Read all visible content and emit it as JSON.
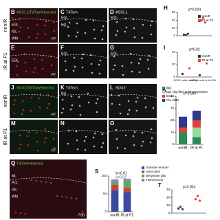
{
  "side_labels": [
    "nonIR",
    "IR at P1",
    "nonIR",
    "IR at P1"
  ],
  "panels": [
    {
      "letter": "B",
      "title": "ASCL1/TdTom/Hoechst",
      "tags": [
        "P7",
        "EGL",
        "IGL",
        "WM"
      ]
    },
    {
      "letter": "C",
      "title": "TdTom",
      "tags": [
        "EGL",
        "Bgl."
      ]
    },
    {
      "letter": "D",
      "title": "ASCL1",
      "tags": [
        "EGL"
      ]
    },
    {
      "letter": "E",
      "tags": [
        "P7",
        "EGL"
      ]
    },
    {
      "letter": "F",
      "tags": [
        "EGL"
      ]
    },
    {
      "letter": "G",
      "tags": [
        "EGL"
      ]
    },
    {
      "letter": "J",
      "title": "SOX2/TdTom/Hoechst",
      "tags": [
        "P7"
      ]
    },
    {
      "letter": "K",
      "title": "TdTom",
      "tags": [
        "Bgl."
      ]
    },
    {
      "letter": "L",
      "title": "SOX2",
      "tags": []
    },
    {
      "letter": "M",
      "tags": [
        "P7"
      ]
    },
    {
      "letter": "N",
      "tags": []
    },
    {
      "letter": "O",
      "tags": []
    },
    {
      "letter": "Q",
      "title": "TdTom/Hoechst",
      "tags": [
        "P30",
        "ML",
        "PCL",
        "IGL",
        "WM"
      ]
    }
  ],
  "charts": [
    {
      "letter": "H",
      "type": "dots",
      "annotations": [
        "p=0.004"
      ],
      "ylim": [
        0,
        60
      ],
      "yticks": [
        0,
        20,
        40,
        60
      ],
      "series": [
        {
          "name": "nonIR",
          "color": "#333333",
          "values": [
            3,
            2,
            5
          ]
        },
        {
          "name": "IR at P1",
          "color": "#e0403a",
          "values": [
            40,
            46,
            34
          ]
        }
      ]
    },
    {
      "letter": "I",
      "type": "dots",
      "annotations": [
        "p=0.02"
      ],
      "ylim": [
        0,
        40
      ],
      "yticks": [
        0,
        20,
        40
      ],
      "categories": [
        "SOX2+ cells in the Bgl.",
        "ASCL1+ cells in the EGL"
      ],
      "series": [
        {
          "name": "nonIR",
          "color": "#333333",
          "values": [
            5,
            3
          ]
        },
        {
          "name": "IR at P1",
          "color": "#e0403a",
          "values": [
            14,
            22
          ]
        }
      ]
    },
    {
      "letter": "P",
      "type": "stacked",
      "annotations": [
        "p=0.005"
      ],
      "ylim": [
        0,
        40
      ],
      "yticks": [
        0,
        10,
        20,
        30,
        40
      ],
      "categories": [
        "nonIR",
        "IR at P1"
      ],
      "series": [
        {
          "name": "Bgl.",
          "color": "#2e8b57",
          "values": [
            10,
            6
          ]
        },
        {
          "name": "Bgl. (Bg-like) in IR progenitors",
          "color": "#9bd89b",
          "values": [
            0,
            8
          ]
        },
        {
          "name": "EGL",
          "color": "#e04040",
          "values": [
            4,
            6
          ]
        },
        {
          "name": "IGL+WM",
          "color": "#2f3a8f",
          "values": [
            9,
            8
          ]
        }
      ]
    },
    {
      "letter": "S",
      "type": "stacked",
      "annotations": [
        "*p<0.01",
        "p=0.02"
      ],
      "ylim": [
        0,
        100
      ],
      "yticks": [
        0,
        50,
        100
      ],
      "categories": [
        "nonIR",
        "IR at P1"
      ],
      "series": [
        {
          "name": "Granule neurons",
          "color": "#3a4aa0",
          "values": [
            60,
            55
          ]
        },
        {
          "name": "Astrocytes",
          "color": "#d04040",
          "values": [
            15,
            12
          ]
        },
        {
          "name": "Bergmann glia",
          "color": "#5aaa5a",
          "values": [
            10,
            20
          ]
        },
        {
          "name": "Interneurons",
          "color": "#9a70c0",
          "values": [
            5,
            5
          ]
        }
      ]
    },
    {
      "letter": "T",
      "type": "dots",
      "annotations": [
        "p=0.004"
      ],
      "ylim": [
        0,
        30
      ],
      "yticks": [
        0,
        10,
        20,
        30
      ],
      "series": [
        {
          "name": "nonIR",
          "color": "#333333",
          "values": [
            6,
            8,
            5
          ]
        },
        {
          "name": "IR at P1",
          "color": "#e0403a",
          "values": [
            18,
            22,
            16
          ]
        }
      ]
    }
  ]
}
